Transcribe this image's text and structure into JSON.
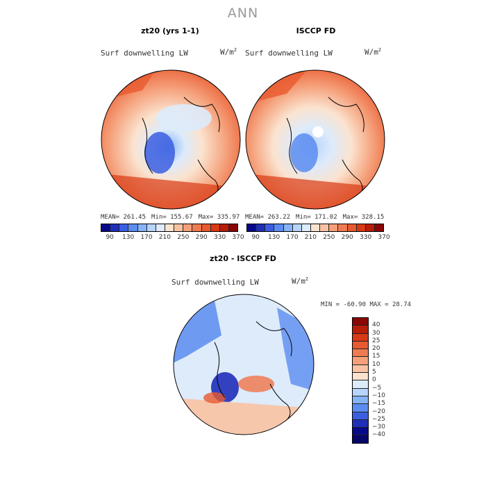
{
  "title": "ANN",
  "panels": [
    {
      "title": "zt20 (yrs 1-1)",
      "variable": "Surf downwelling LW",
      "units": "W/m",
      "units_sup": "2",
      "stats": {
        "mean": "MEAN= 261.45",
        "min": "Min= 155.67",
        "max": "Max= 335.97"
      }
    },
    {
      "title": "ISCCP FD",
      "variable": "Surf downwelling LW",
      "units": "W/m",
      "units_sup": "2",
      "stats": {
        "mean": "MEAN= 263.22",
        "min": "Min= 171.02",
        "max": "Max= 328.15"
      }
    }
  ],
  "diff_panel": {
    "title": "zt20 - ISCCP FD",
    "variable": "Surf downwelling LW",
    "units": "W/m",
    "units_sup": "2",
    "minmax": "MIN = -60.90 MAX =  28.74"
  },
  "colorbar_abs": {
    "labels": [
      "90",
      "130",
      "170",
      "210",
      "250",
      "290",
      "330",
      "370"
    ],
    "colors": [
      "#08088a",
      "#1f2fb8",
      "#3b5ee0",
      "#5b8cf0",
      "#86b3f5",
      "#b7d4fa",
      "#ddebfb",
      "#fbe3cf",
      "#f9c3a3",
      "#f5a07a",
      "#ef7b52",
      "#e85a30",
      "#d83a15",
      "#b81d0a",
      "#8a0505"
    ]
  },
  "colorbar_diff": {
    "labels": [
      "40",
      "30",
      "25",
      "20",
      "15",
      "10",
      "5",
      "0",
      "−5",
      "−10",
      "−15",
      "−20",
      "−25",
      "−30",
      "−40"
    ],
    "colors": [
      "#8a0505",
      "#b81d0a",
      "#d83a15",
      "#e85a30",
      "#ef7b52",
      "#f5a07a",
      "#f9c3a3",
      "#fbe3cf",
      "#ddebfb",
      "#b7d4fa",
      "#86b3f5",
      "#5b8cf0",
      "#3b5ee0",
      "#1f2fb8",
      "#08088a",
      "#06066a"
    ]
  }
}
